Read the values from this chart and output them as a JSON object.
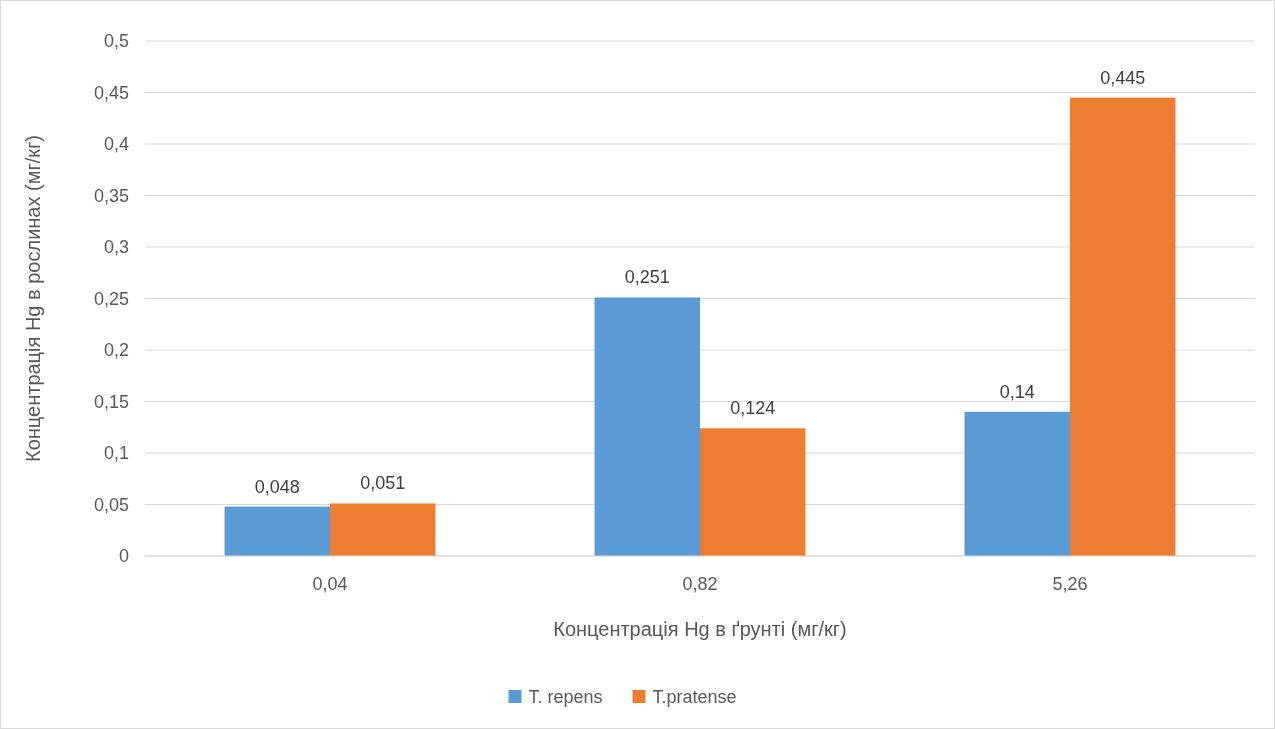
{
  "chart_data": {
    "type": "bar",
    "xlabel": "Концентрація Hg в ґрунті (мг/кг)",
    "ylabel": "Концентрація Hg в рослинах (мг/кг)",
    "categories": [
      "0,04",
      "0,82",
      "5,26"
    ],
    "series": [
      {
        "name": "T. repens",
        "color": "#5b9bd5",
        "values": [
          0.048,
          0.251,
          0.14
        ],
        "value_labels": [
          "0,048",
          "0,251",
          "0,14"
        ]
      },
      {
        "name": "T.pratense",
        "color": "#ed7d31",
        "values": [
          0.051,
          0.124,
          0.445
        ],
        "value_labels": [
          "0,051",
          "0,124",
          "0,445"
        ]
      }
    ],
    "ylim": [
      0,
      0.5
    ],
    "yticks": [
      0,
      {
        "value": 0.05,
        "label": "0,05"
      },
      {
        "value": 0.1,
        "label": "0,1"
      },
      {
        "value": 0.15,
        "label": "0,15"
      },
      {
        "value": 0.2,
        "label": "0,2"
      },
      {
        "value": 0.25,
        "label": "0,25"
      },
      {
        "value": 0.3,
        "label": "0,3"
      },
      {
        "value": 0.35,
        "label": "0,35"
      },
      {
        "value": 0.4,
        "label": "0,4"
      },
      {
        "value": 0.45,
        "label": "0,45"
      },
      {
        "value": 0.5,
        "label": "0,5"
      }
    ],
    "grid": "y",
    "legend": "bottom"
  }
}
